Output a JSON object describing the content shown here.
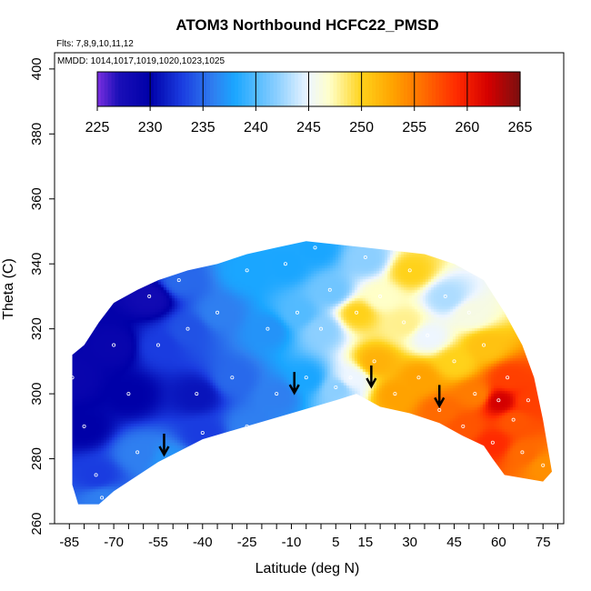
{
  "chart_data": {
    "type": "heatmap",
    "title": "ATOM3 Northbound HCFC22_PMSD",
    "subtitle_flights": "Flts: 7,8,9,10,11,12",
    "subtitle_dates": "MMDD: 1014,1017,1019,1020,1023,1025",
    "xlabel": "Latitude (deg N)",
    "ylabel": "Theta (C)",
    "xlim": [
      -90,
      82
    ],
    "ylim": [
      260,
      405
    ],
    "x_ticks": [
      -85,
      -70,
      -55,
      -40,
      -25,
      -10,
      5,
      15,
      30,
      45,
      60,
      75
    ],
    "y_ticks": [
      260,
      280,
      300,
      320,
      340,
      360,
      380,
      400
    ],
    "colorbar": {
      "range": [
        225,
        265
      ],
      "ticks": [
        225,
        230,
        235,
        240,
        245,
        250,
        255,
        260,
        265
      ],
      "stops": [
        {
          "v": 225,
          "color": "#7b2fe0"
        },
        {
          "v": 227,
          "color": "#1a0fb8"
        },
        {
          "v": 230,
          "color": "#0000a8"
        },
        {
          "v": 233,
          "color": "#1a3ce0"
        },
        {
          "v": 236,
          "color": "#2f7ff0"
        },
        {
          "v": 238,
          "color": "#1aa6ff"
        },
        {
          "v": 242,
          "color": "#8ccfff"
        },
        {
          "v": 245,
          "color": "#eef6ff"
        },
        {
          "v": 247,
          "color": "#ffffc8"
        },
        {
          "v": 250,
          "color": "#ffd21a"
        },
        {
          "v": 253,
          "color": "#ffa200"
        },
        {
          "v": 256,
          "color": "#ff6a00"
        },
        {
          "v": 259,
          "color": "#ff2a00"
        },
        {
          "v": 262,
          "color": "#d40000"
        },
        {
          "v": 265,
          "color": "#7a1010"
        }
      ]
    },
    "field_points": [
      {
        "lat": -84,
        "theta": 305,
        "v": 229
      },
      {
        "lat": -80,
        "theta": 290,
        "v": 230
      },
      {
        "lat": -76,
        "theta": 275,
        "v": 233
      },
      {
        "lat": -74,
        "theta": 268,
        "v": 236
      },
      {
        "lat": -70,
        "theta": 315,
        "v": 229
      },
      {
        "lat": -65,
        "theta": 300,
        "v": 230
      },
      {
        "lat": -62,
        "theta": 282,
        "v": 236
      },
      {
        "lat": -58,
        "theta": 330,
        "v": 228
      },
      {
        "lat": -55,
        "theta": 315,
        "v": 233
      },
      {
        "lat": -52,
        "theta": 280,
        "v": 237
      },
      {
        "lat": -48,
        "theta": 335,
        "v": 235
      },
      {
        "lat": -45,
        "theta": 320,
        "v": 234
      },
      {
        "lat": -42,
        "theta": 300,
        "v": 231
      },
      {
        "lat": -40,
        "theta": 288,
        "v": 233
      },
      {
        "lat": -35,
        "theta": 325,
        "v": 236
      },
      {
        "lat": -30,
        "theta": 305,
        "v": 235
      },
      {
        "lat": -25,
        "theta": 290,
        "v": 236
      },
      {
        "lat": -25,
        "theta": 338,
        "v": 238
      },
      {
        "lat": -18,
        "theta": 320,
        "v": 237
      },
      {
        "lat": -15,
        "theta": 300,
        "v": 236
      },
      {
        "lat": -12,
        "theta": 340,
        "v": 238
      },
      {
        "lat": -8,
        "theta": 325,
        "v": 240
      },
      {
        "lat": -5,
        "theta": 305,
        "v": 238
      },
      {
        "lat": -2,
        "theta": 345,
        "v": 238
      },
      {
        "lat": 0,
        "theta": 320,
        "v": 242
      },
      {
        "lat": 3,
        "theta": 332,
        "v": 241
      },
      {
        "lat": 5,
        "theta": 302,
        "v": 242
      },
      {
        "lat": 10,
        "theta": 305,
        "v": 245
      },
      {
        "lat": 12,
        "theta": 325,
        "v": 250
      },
      {
        "lat": 15,
        "theta": 342,
        "v": 242
      },
      {
        "lat": 18,
        "theta": 310,
        "v": 252
      },
      {
        "lat": 20,
        "theta": 330,
        "v": 247
      },
      {
        "lat": 25,
        "theta": 300,
        "v": 253
      },
      {
        "lat": 28,
        "theta": 322,
        "v": 248
      },
      {
        "lat": 30,
        "theta": 338,
        "v": 250
      },
      {
        "lat": 33,
        "theta": 305,
        "v": 253
      },
      {
        "lat": 36,
        "theta": 318,
        "v": 245
      },
      {
        "lat": 40,
        "theta": 295,
        "v": 256
      },
      {
        "lat": 42,
        "theta": 330,
        "v": 243
      },
      {
        "lat": 45,
        "theta": 310,
        "v": 250
      },
      {
        "lat": 48,
        "theta": 290,
        "v": 257
      },
      {
        "lat": 50,
        "theta": 325,
        "v": 246
      },
      {
        "lat": 52,
        "theta": 300,
        "v": 255
      },
      {
        "lat": 55,
        "theta": 315,
        "v": 251
      },
      {
        "lat": 58,
        "theta": 285,
        "v": 259
      },
      {
        "lat": 60,
        "theta": 298,
        "v": 262
      },
      {
        "lat": 63,
        "theta": 305,
        "v": 258
      },
      {
        "lat": 65,
        "theta": 292,
        "v": 257
      },
      {
        "lat": 68,
        "theta": 282,
        "v": 256
      },
      {
        "lat": 70,
        "theta": 298,
        "v": 258
      },
      {
        "lat": 75,
        "theta": 278,
        "v": 254
      }
    ],
    "domain_lower": [
      [
        -84,
        272
      ],
      [
        -82,
        266
      ],
      [
        -75,
        266
      ],
      [
        -70,
        270
      ],
      [
        -55,
        279
      ],
      [
        -40,
        286
      ],
      [
        -25,
        290
      ],
      [
        -10,
        294
      ],
      [
        5,
        298
      ],
      [
        12,
        300
      ],
      [
        20,
        296
      ],
      [
        30,
        294
      ],
      [
        40,
        291
      ],
      [
        48,
        287
      ],
      [
        55,
        284
      ],
      [
        58,
        280
      ],
      [
        62,
        275
      ],
      [
        75,
        273
      ]
    ],
    "domain_upper": [
      [
        -84,
        312
      ],
      [
        -80,
        315
      ],
      [
        -75,
        322
      ],
      [
        -70,
        328
      ],
      [
        -62,
        332
      ],
      [
        -55,
        335
      ],
      [
        -45,
        338
      ],
      [
        -35,
        340
      ],
      [
        -25,
        343
      ],
      [
        -15,
        345
      ],
      [
        -5,
        347
      ],
      [
        5,
        346
      ],
      [
        15,
        345
      ],
      [
        25,
        344
      ],
      [
        35,
        343
      ],
      [
        45,
        340
      ],
      [
        55,
        335
      ],
      [
        62,
        325
      ],
      [
        68,
        315
      ],
      [
        72,
        305
      ],
      [
        75,
        292
      ],
      [
        78,
        276
      ]
    ],
    "arrows": [
      {
        "lat": -53,
        "theta": 281
      },
      {
        "lat": -9,
        "theta": 300
      },
      {
        "lat": 17,
        "theta": 302
      },
      {
        "lat": 40,
        "theta": 296
      }
    ]
  }
}
